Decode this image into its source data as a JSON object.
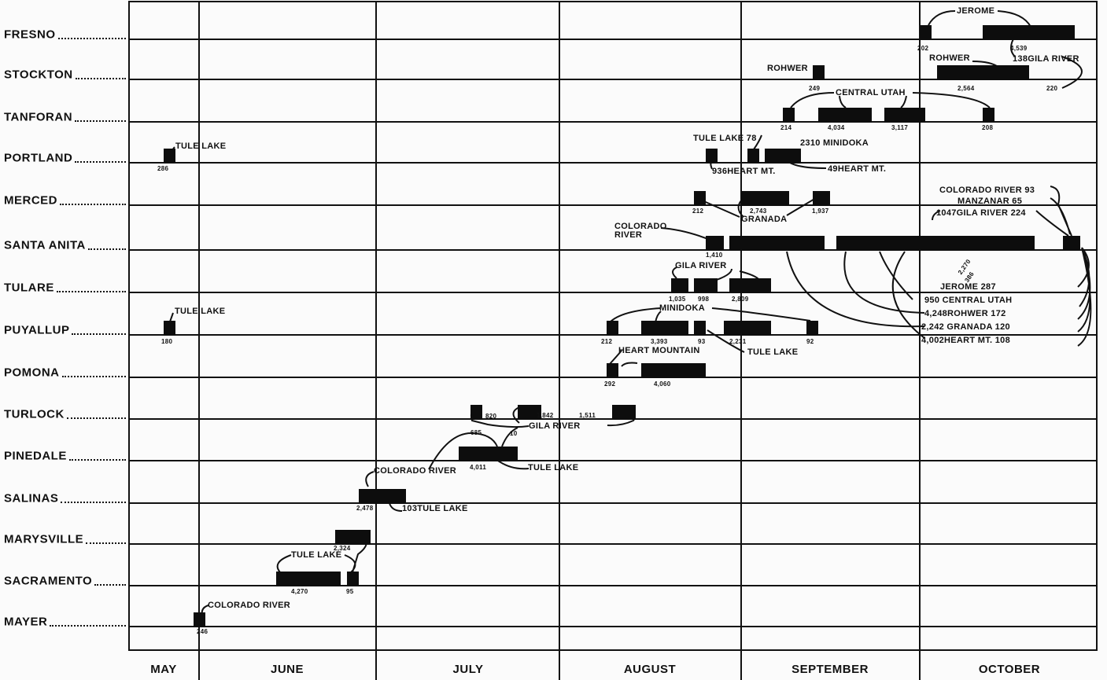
{
  "chart_data": {
    "type": "gantt",
    "months": [
      "MAY",
      "JUNE",
      "JULY",
      "AUGUST",
      "SEPTEMBER",
      "OCTOBER"
    ],
    "rows": [
      {
        "name": "FRESNO",
        "bars": [
          {
            "start": "Oct 1",
            "end": "Oct 2"
          },
          {
            "start": "Oct 12",
            "end": "Oct 27"
          }
        ],
        "labels": [
          "JEROME",
          "202",
          "4,539",
          "138GILA RIVER"
        ]
      },
      {
        "name": "STOCKTON",
        "bars": [
          {
            "start": "Sep 13",
            "end": "Sep 14"
          },
          {
            "start": "Oct 4",
            "end": "Oct 19"
          }
        ],
        "labels": [
          "ROHWER",
          "249",
          "ROHWER",
          "2,564",
          "220"
        ]
      },
      {
        "name": "TANFORAN",
        "bars": [
          {
            "start": "Sep 8",
            "end": "Sep 9"
          },
          {
            "start": "Sep 14",
            "end": "Sep 22"
          },
          {
            "start": "Sep 25",
            "end": "Oct 1"
          },
          {
            "start": "Oct 12",
            "end": "Oct 13"
          }
        ],
        "labels": [
          "CENTRAL UTAH",
          "214",
          "4,034",
          "3,117",
          "208"
        ]
      },
      {
        "name": "PORTLAND",
        "bars": [
          {
            "start": "May 26",
            "end": "May 27"
          },
          {
            "start": "Aug 26",
            "end": "Aug 27"
          },
          {
            "start": "Sep 2",
            "end": "Sep 3"
          },
          {
            "start": "Sep 5",
            "end": "Sep 10"
          }
        ],
        "labels": [
          "TULE LAKE",
          "286",
          "TULE LAKE 78",
          "2310 MINIDOKA",
          "936HEART MT.",
          "49HEART MT."
        ]
      },
      {
        "name": "MERCED",
        "bars": [
          {
            "start": "Aug 24",
            "end": "Aug 25"
          },
          {
            "start": "Sep 1",
            "end": "Sep 8"
          },
          {
            "start": "Sep 13",
            "end": "Sep 15"
          }
        ],
        "labels": [
          "212",
          "2,743",
          "1,937",
          "GRANADA"
        ]
      },
      {
        "name": "SANTA ANITA",
        "bars": [
          {
            "start": "Aug 26",
            "end": "Aug 28"
          },
          {
            "start": "Aug 30",
            "end": "Sep 14"
          },
          {
            "start": "Sep 17",
            "end": "Oct 20"
          },
          {
            "start": "Oct 26",
            "end": "Oct 28"
          }
        ],
        "labels": [
          "COLORADO",
          "RIVER",
          "1,410",
          "COLORADO RIVER 93",
          "MANZANAR 65",
          "1047GILA RIVER 224",
          "2,270",
          "386",
          "JEROME 287",
          "950 CENTRAL UTAH",
          "4,248ROHWER 172",
          "2,242 GRANADA 120",
          "4,002HEART MT. 108"
        ]
      },
      {
        "name": "TULARE",
        "bars": [
          {
            "start": "Aug 20",
            "end": "Aug 22"
          },
          {
            "start": "Aug 24",
            "end": "Aug 27"
          },
          {
            "start": "Aug 30",
            "end": "Sep 5"
          }
        ],
        "labels": [
          "GILA RIVER",
          "1,035",
          "998",
          "2,809"
        ]
      },
      {
        "name": "PUYALLUP",
        "bars": [
          {
            "start": "May 26",
            "end": "May 27"
          },
          {
            "start": "Aug 9",
            "end": "Aug 10"
          },
          {
            "start": "Aug 15",
            "end": "Aug 22"
          },
          {
            "start": "Aug 24",
            "end": "Aug 25"
          },
          {
            "start": "Aug 29",
            "end": "Sep 5"
          },
          {
            "start": "Sep 12",
            "end": "Sep 13"
          }
        ],
        "labels": [
          "TULE LAKE",
          "180",
          "MINIDOKA",
          "212",
          "3,393",
          "93",
          "2,231",
          "92",
          "TULE LAKE"
        ]
      },
      {
        "name": "POMONA",
        "bars": [
          {
            "start": "Aug 9",
            "end": "Aug 10"
          },
          {
            "start": "Aug 15",
            "end": "Aug 25"
          }
        ],
        "labels": [
          "HEART MOUNTAIN",
          "292",
          "4,060"
        ]
      },
      {
        "name": "TURLOCK",
        "bars": [
          {
            "start": "Jul 17",
            "end": "Jul 18"
          },
          {
            "start": "Jul 25",
            "end": "Jul 28"
          },
          {
            "start": "Aug 10",
            "end": "Aug 13"
          }
        ],
        "labels": [
          "820",
          "1,842",
          "1,511",
          "GILA RIVER"
        ]
      },
      {
        "name": "PINEDALE",
        "bars": [
          {
            "start": "Jul 15",
            "end": "Jul 24"
          }
        ],
        "labels": [
          "685",
          "10",
          "4,011",
          "TULE LAKE"
        ]
      },
      {
        "name": "SALINAS",
        "bars": [
          {
            "start": "Jun 28",
            "end": "Jul 5"
          }
        ],
        "labels": [
          "COLORADO RIVER",
          "2,478",
          "103TULE LAKE"
        ]
      },
      {
        "name": "MARYSVILLE",
        "bars": [
          {
            "start": "Jun 24",
            "end": "Jun 29"
          }
        ],
        "labels": [
          "2,324"
        ]
      },
      {
        "name": "SACRAMENTO",
        "bars": [
          {
            "start": "Jun 14",
            "end": "Jun 24"
          },
          {
            "start": "Jun 26",
            "end": "Jun 27"
          }
        ],
        "labels": [
          "TULE LAKE",
          "4,270",
          "95"
        ]
      },
      {
        "name": "MAYER",
        "bars": [
          {
            "start": "May 31",
            "end": "Jun 1"
          }
        ],
        "labels": [
          "COLORADO RIVER",
          "246"
        ]
      }
    ],
    "colors": {
      "bar": "#0d0d0d",
      "background": "#fbfbfb"
    }
  }
}
